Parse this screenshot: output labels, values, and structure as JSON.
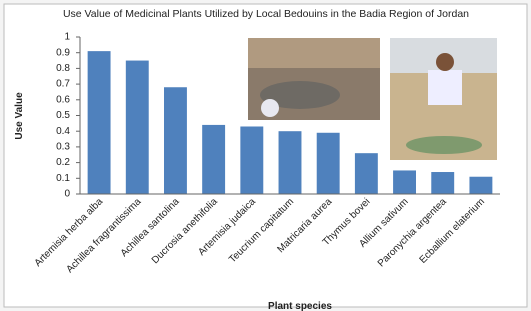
{
  "chart_data": {
    "type": "bar",
    "title": "Use Value of Medicinal Plants Utilized by Local Bedouins in the Badia Region of Jordan",
    "y_label": "Use Value",
    "x_label": "Plant species",
    "categories": [
      "Artemisia herba alba",
      "Achillea fragrantissima",
      "Achillea santolina",
      "Ducrosia anethifolia",
      "Artemisia judaica",
      "Teucrium capitatum",
      "Matricaria aurea",
      "Thymus bovei",
      "Allium sativum",
      "Paronychia argentea",
      "Ecballium elaterium"
    ],
    "values": [
      0.91,
      0.85,
      0.68,
      0.44,
      0.43,
      0.4,
      0.39,
      0.26,
      0.15,
      0.14,
      0.11
    ],
    "color": "#4f81bd",
    "ylim": [
      0,
      1
    ],
    "yticks": [
      0,
      0.1,
      0.2,
      0.3,
      0.4,
      0.5,
      0.6,
      0.7,
      0.8,
      0.9,
      1
    ]
  }
}
